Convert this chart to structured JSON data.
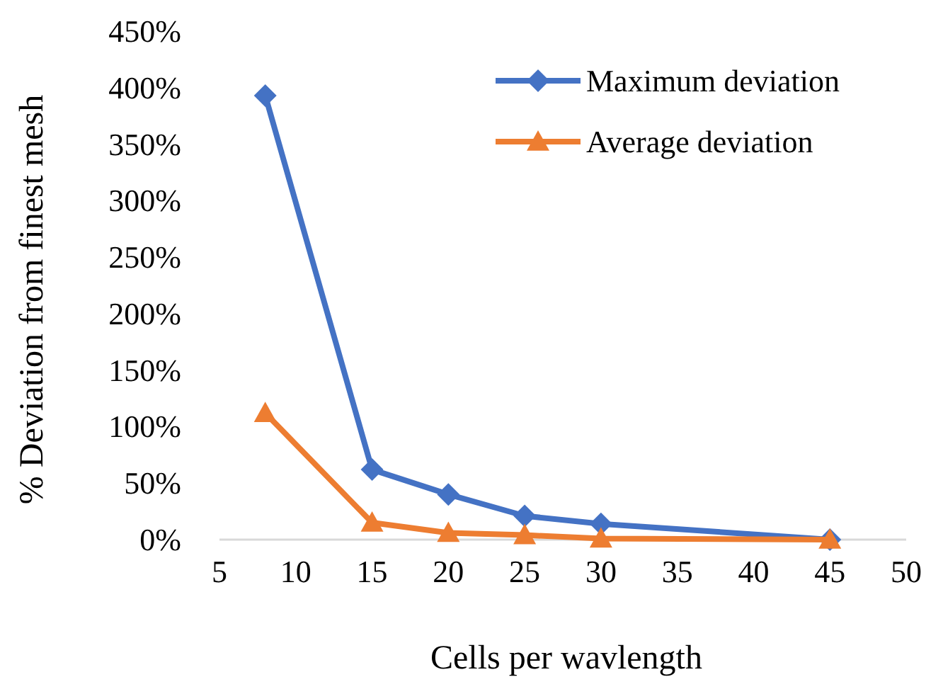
{
  "chart_data": {
    "type": "line",
    "xlabel": "Cells per wavlength",
    "ylabel": "% Deviation from finest mesh",
    "x": [
      8,
      15,
      20,
      25,
      30,
      45
    ],
    "series": [
      {
        "name": "Maximum deviation",
        "color": "#4472c4",
        "values": [
          393,
          62,
          40,
          21,
          14,
          0
        ],
        "marker": "diamond"
      },
      {
        "name": "Average deviation",
        "color": "#ed7d31",
        "values": [
          112,
          15,
          6,
          4,
          1,
          0
        ],
        "marker": "triangle"
      }
    ],
    "xlim": [
      5,
      50
    ],
    "xticks": [
      5,
      10,
      15,
      20,
      25,
      30,
      35,
      40,
      45,
      50
    ],
    "ylim": [
      0,
      450
    ],
    "yticks": [
      {
        "value": 0,
        "label": "0%"
      },
      {
        "value": 50,
        "label": "50%"
      },
      {
        "value": 100,
        "label": "100%"
      },
      {
        "value": 150,
        "label": "150%"
      },
      {
        "value": 200,
        "label": "200%"
      },
      {
        "value": 250,
        "label": "250%"
      },
      {
        "value": 300,
        "label": "300%"
      },
      {
        "value": 350,
        "label": "350%"
      },
      {
        "value": 400,
        "label": "400%"
      },
      {
        "value": 450,
        "label": "450%"
      }
    ],
    "grid": false,
    "legend": "top right",
    "line_style": "solid"
  }
}
